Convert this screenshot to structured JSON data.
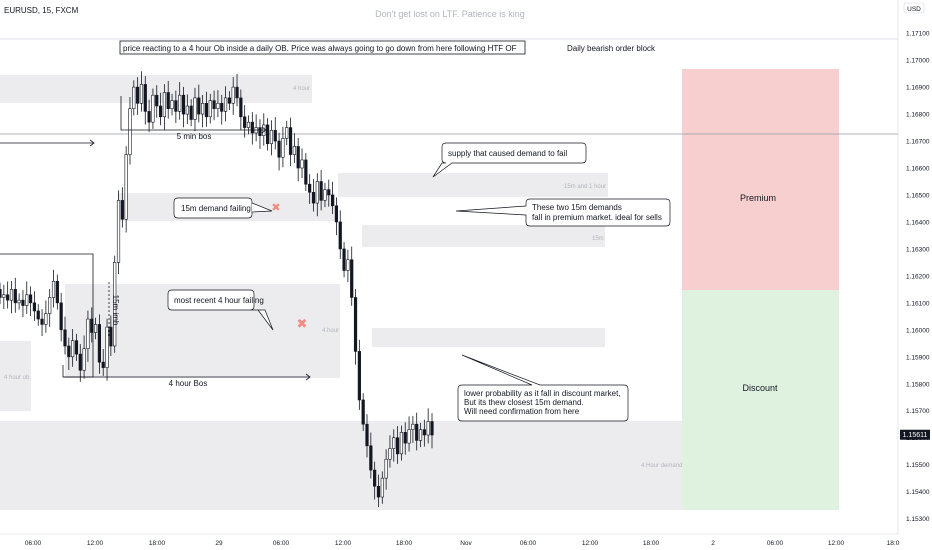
{
  "header": {
    "symbol_label": "EURUSD, 15, FXCM",
    "watermark": "Don't get lost on LTF. Patience is king",
    "currency_badge": "USD"
  },
  "last_price_label": "1.15611",
  "chart_data": {
    "type": "candlestick",
    "symbol": "EURUSD",
    "timeframe": "15",
    "y_axis": {
      "range": [
        1.1528,
        1.1716
      ],
      "ticks": [
        "1.17100",
        "1.17000",
        "1.16900",
        "1.16800",
        "1.16700",
        "1.16600",
        "1.16500",
        "1.16400",
        "1.16300",
        "1.16200",
        "1.16100",
        "1.16000",
        "1.15900",
        "1.15800",
        "1.15700",
        "1.15600",
        "1.15500",
        "1.15400",
        "1.15300"
      ]
    },
    "x_axis": {
      "ticks": [
        "06:00",
        "12:00",
        "18:00",
        "29",
        "06:00",
        "12:00",
        "18:00",
        "Nov",
        "06:00",
        "12:00",
        "18:00",
        "2",
        "06:00",
        "12:00",
        "18:0"
      ]
    },
    "horizontal_line_price": 1.1668,
    "candles_close": [
      1.1612,
      1.1613,
      1.1611,
      1.1615,
      1.161,
      1.1611,
      1.1609,
      1.1613,
      1.161,
      1.1607,
      1.1604,
      1.1602,
      1.1606,
      1.1612,
      1.1618,
      1.161,
      1.16,
      1.1594,
      1.159,
      1.1596,
      1.1591,
      1.1585,
      1.1593,
      1.1604,
      1.1599,
      1.1602,
      1.1588,
      1.1586,
      1.1601,
      1.1594,
      1.1625,
      1.1648,
      1.1641,
      1.1665,
      1.1682,
      1.169,
      1.1684,
      1.1691,
      1.1681,
      1.1677,
      1.1687,
      1.1683,
      1.1679,
      1.1688,
      1.1682,
      1.1685,
      1.1681,
      1.1687,
      1.168,
      1.1683,
      1.1678,
      1.1686,
      1.168,
      1.1684,
      1.1679,
      1.1685,
      1.1682,
      1.1684,
      1.1681,
      1.1686,
      1.1684,
      1.169,
      1.1686,
      1.1679,
      1.1675,
      1.1677,
      1.1673,
      1.1675,
      1.1672,
      1.1676,
      1.1669,
      1.1674,
      1.167,
      1.1664,
      1.1671,
      1.1675,
      1.1665,
      1.1668,
      1.166,
      1.1663,
      1.1654,
      1.1651,
      1.1647,
      1.1655,
      1.1648,
      1.1652,
      1.165,
      1.1646,
      1.164,
      1.163,
      1.1622,
      1.1626,
      1.1612,
      1.1592,
      1.1574,
      1.1565,
      1.1557,
      1.1548,
      1.1542,
      1.1538,
      1.1545,
      1.1552,
      1.1556,
      1.156,
      1.1554,
      1.1562,
      1.1558,
      1.1563,
      1.1565,
      1.1559,
      1.1563,
      1.1561,
      1.1566,
      1.1561
    ]
  },
  "zones": [
    {
      "label": "4 hour"
    },
    {
      "label": "15m and 1 hour"
    },
    {
      "label": ""
    },
    {
      "label": "15m"
    },
    {
      "label": "4 hour"
    },
    {
      "label": ""
    },
    {
      "label": "4 hour ob"
    },
    {
      "label": "4 Hour demand"
    }
  ],
  "premium": {
    "label": "Premium",
    "color": "#f8cfcf"
  },
  "discount": {
    "label": "Discount",
    "color": "#dff2df"
  },
  "annotations": {
    "top_box": "price reacting to a 4 hour Ob inside a daily OB. Price was always going to go down from here following HTF OF",
    "daily_ob": "Daily bearish order block",
    "five_min_bos": "5 min bos",
    "four_hour_bos": "4 hour Bos",
    "fifteen_imb": "15m imb",
    "supply_caused": "supply that caused demand to fail",
    "demand_failing_15m": "15m demand failing",
    "two_demands": [
      "These two 15m demands",
      "fall in premium market. ideal for sells"
    ],
    "recent_4h_failing": "most recent 4 hour failing",
    "lower_prob": [
      "lower probability as it fall in discount market,",
      "But its thew closest 15m demand.",
      "Will need confirmation from here"
    ]
  },
  "colors": {
    "up": "#131722",
    "down": "#131722",
    "zone": "#ececee",
    "cross": "#f28b82",
    "price_tag": "#131722"
  }
}
